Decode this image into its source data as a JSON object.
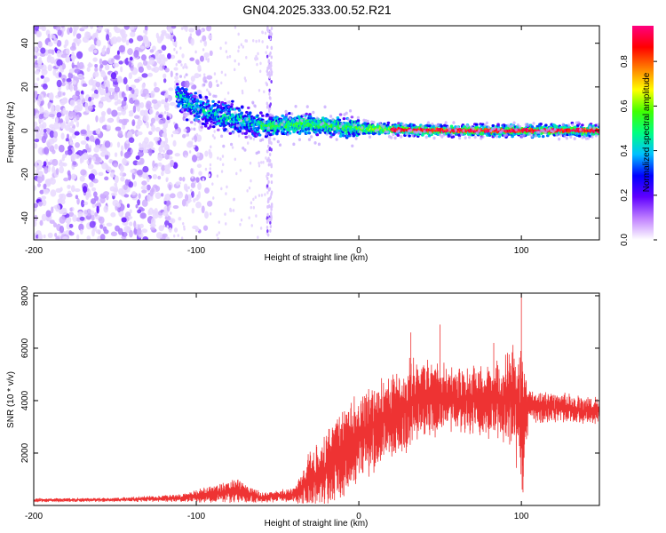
{
  "title": "GN04.2025.333.00.52.R21",
  "chart_data": [
    {
      "type": "heatmap",
      "xlabel": "Height of straight line (km)",
      "ylabel": "Frequency (Hz)",
      "xlim": [
        -200,
        148
      ],
      "ylim": [
        -50,
        48
      ],
      "xticks": [
        -200,
        -100,
        0,
        100
      ],
      "yticks": [
        -40,
        -20,
        0,
        20,
        40
      ],
      "colorbar": {
        "label": "Normalized spectral amplitude",
        "range": [
          0,
          0.96
        ],
        "ticks": [
          0.0,
          0.2,
          0.4,
          0.6,
          0.8
        ],
        "colormap": [
          "#ffffff",
          "#c080ff",
          "#6000ff",
          "#0000ff",
          "#00c0ff",
          "#00ff80",
          "#40ff00",
          "#ffff00",
          "#ff8000",
          "#ff0000",
          "#ff0080"
        ]
      },
      "features": {
        "noise_region_x": [
          -200,
          -105
        ],
        "signal_onset_x": -112,
        "band_center_hz": [
          {
            "x": -112,
            "hz": 16
          },
          {
            "x": -100,
            "hz": 10
          },
          {
            "x": -80,
            "hz": 6
          },
          {
            "x": -55,
            "hz": 2
          },
          {
            "x": -30,
            "hz": 3
          },
          {
            "x": 0,
            "hz": 1
          },
          {
            "x": 50,
            "hz": 0
          },
          {
            "x": 148,
            "hz": 0
          }
        ],
        "vertical_stripe_x": -55
      }
    },
    {
      "type": "line",
      "xlabel": "Height of straight line (km)",
      "ylabel": "SNR (10 * v/v)",
      "xlim": [
        -200,
        148
      ],
      "ylim": [
        0,
        8100
      ],
      "xticks": [
        -200,
        -100,
        0,
        100
      ],
      "yticks": [
        2000,
        4000,
        6000,
        8000
      ],
      "series": [
        {
          "color": "#ee3333",
          "envelope": [
            {
              "x": -200,
              "mean": 200,
              "spread": 80
            },
            {
              "x": -150,
              "mean": 220,
              "spread": 80
            },
            {
              "x": -110,
              "mean": 280,
              "spread": 150
            },
            {
              "x": -95,
              "mean": 400,
              "spread": 300
            },
            {
              "x": -75,
              "mean": 550,
              "spread": 500
            },
            {
              "x": -60,
              "mean": 300,
              "spread": 200
            },
            {
              "x": -40,
              "mean": 400,
              "spread": 300
            },
            {
              "x": -30,
              "mean": 900,
              "spread": 1200
            },
            {
              "x": -15,
              "mean": 1700,
              "spread": 1800
            },
            {
              "x": 0,
              "mean": 2600,
              "spread": 1800
            },
            {
              "x": 20,
              "mean": 3400,
              "spread": 1700
            },
            {
              "x": 35,
              "mean": 4000,
              "spread": 1800
            },
            {
              "x": 55,
              "mean": 4100,
              "spread": 1300
            },
            {
              "x": 80,
              "mean": 3900,
              "spread": 1400
            },
            {
              "x": 95,
              "mean": 4200,
              "spread": 2000
            },
            {
              "x": 100,
              "mean": 3000,
              "spread": 3000
            },
            {
              "x": 105,
              "mean": 3800,
              "spread": 700
            },
            {
              "x": 148,
              "mean": 3600,
              "spread": 500
            }
          ],
          "peaks": [
            {
              "x": 100,
              "y": 8100
            },
            {
              "x": 32,
              "y": 6600
            },
            {
              "x": 50,
              "y": 6900
            },
            {
              "x": 83,
              "y": 6200
            },
            {
              "x": 101,
              "y": 500
            }
          ]
        }
      ]
    }
  ]
}
